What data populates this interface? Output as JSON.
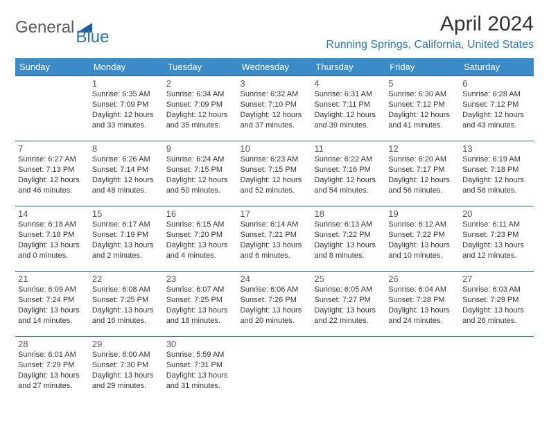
{
  "logo": {
    "part1": "General",
    "part2": "Blue",
    "text_color_1": "#5a5a5a",
    "text_color_2": "#2b76b9",
    "shape_color": "#1f5d94"
  },
  "title": "April 2024",
  "location": "Running Springs, California, United States",
  "colors": {
    "header_bg": "#3b8bc9",
    "header_text": "#ffffff",
    "cell_border": "#2b5a87",
    "day_num_color": "#555555",
    "body_text": "#333333",
    "location_color": "#2b76b9"
  },
  "day_headers": [
    "Sunday",
    "Monday",
    "Tuesday",
    "Wednesday",
    "Thursday",
    "Friday",
    "Saturday"
  ],
  "weeks": [
    [
      null,
      {
        "d": "1",
        "sr": "6:35 AM",
        "ss": "7:09 PM",
        "dl1": "12 hours",
        "dl2": "and 33 minutes."
      },
      {
        "d": "2",
        "sr": "6:34 AM",
        "ss": "7:09 PM",
        "dl1": "12 hours",
        "dl2": "and 35 minutes."
      },
      {
        "d": "3",
        "sr": "6:32 AM",
        "ss": "7:10 PM",
        "dl1": "12 hours",
        "dl2": "and 37 minutes."
      },
      {
        "d": "4",
        "sr": "6:31 AM",
        "ss": "7:11 PM",
        "dl1": "12 hours",
        "dl2": "and 39 minutes."
      },
      {
        "d": "5",
        "sr": "6:30 AM",
        "ss": "7:12 PM",
        "dl1": "12 hours",
        "dl2": "and 41 minutes."
      },
      {
        "d": "6",
        "sr": "6:28 AM",
        "ss": "7:12 PM",
        "dl1": "12 hours",
        "dl2": "and 43 minutes."
      }
    ],
    [
      {
        "d": "7",
        "sr": "6:27 AM",
        "ss": "7:13 PM",
        "dl1": "12 hours",
        "dl2": "and 46 minutes."
      },
      {
        "d": "8",
        "sr": "6:26 AM",
        "ss": "7:14 PM",
        "dl1": "12 hours",
        "dl2": "and 48 minutes."
      },
      {
        "d": "9",
        "sr": "6:24 AM",
        "ss": "7:15 PM",
        "dl1": "12 hours",
        "dl2": "and 50 minutes."
      },
      {
        "d": "10",
        "sr": "6:23 AM",
        "ss": "7:15 PM",
        "dl1": "12 hours",
        "dl2": "and 52 minutes."
      },
      {
        "d": "11",
        "sr": "6:22 AM",
        "ss": "7:16 PM",
        "dl1": "12 hours",
        "dl2": "and 54 minutes."
      },
      {
        "d": "12",
        "sr": "6:20 AM",
        "ss": "7:17 PM",
        "dl1": "12 hours",
        "dl2": "and 56 minutes."
      },
      {
        "d": "13",
        "sr": "6:19 AM",
        "ss": "7:18 PM",
        "dl1": "12 hours",
        "dl2": "and 58 minutes."
      }
    ],
    [
      {
        "d": "14",
        "sr": "6:18 AM",
        "ss": "7:18 PM",
        "dl1": "13 hours",
        "dl2": "and 0 minutes."
      },
      {
        "d": "15",
        "sr": "6:17 AM",
        "ss": "7:19 PM",
        "dl1": "13 hours",
        "dl2": "and 2 minutes."
      },
      {
        "d": "16",
        "sr": "6:15 AM",
        "ss": "7:20 PM",
        "dl1": "13 hours",
        "dl2": "and 4 minutes."
      },
      {
        "d": "17",
        "sr": "6:14 AM",
        "ss": "7:21 PM",
        "dl1": "13 hours",
        "dl2": "and 6 minutes."
      },
      {
        "d": "18",
        "sr": "6:13 AM",
        "ss": "7:22 PM",
        "dl1": "13 hours",
        "dl2": "and 8 minutes."
      },
      {
        "d": "19",
        "sr": "6:12 AM",
        "ss": "7:22 PM",
        "dl1": "13 hours",
        "dl2": "and 10 minutes."
      },
      {
        "d": "20",
        "sr": "6:11 AM",
        "ss": "7:23 PM",
        "dl1": "13 hours",
        "dl2": "and 12 minutes."
      }
    ],
    [
      {
        "d": "21",
        "sr": "6:09 AM",
        "ss": "7:24 PM",
        "dl1": "13 hours",
        "dl2": "and 14 minutes."
      },
      {
        "d": "22",
        "sr": "6:08 AM",
        "ss": "7:25 PM",
        "dl1": "13 hours",
        "dl2": "and 16 minutes."
      },
      {
        "d": "23",
        "sr": "6:07 AM",
        "ss": "7:25 PM",
        "dl1": "13 hours",
        "dl2": "and 18 minutes."
      },
      {
        "d": "24",
        "sr": "6:06 AM",
        "ss": "7:26 PM",
        "dl1": "13 hours",
        "dl2": "and 20 minutes."
      },
      {
        "d": "25",
        "sr": "6:05 AM",
        "ss": "7:27 PM",
        "dl1": "13 hours",
        "dl2": "and 22 minutes."
      },
      {
        "d": "26",
        "sr": "6:04 AM",
        "ss": "7:28 PM",
        "dl1": "13 hours",
        "dl2": "and 24 minutes."
      },
      {
        "d": "27",
        "sr": "6:03 AM",
        "ss": "7:29 PM",
        "dl1": "13 hours",
        "dl2": "and 26 minutes."
      }
    ],
    [
      {
        "d": "28",
        "sr": "6:01 AM",
        "ss": "7:29 PM",
        "dl1": "13 hours",
        "dl2": "and 27 minutes."
      },
      {
        "d": "29",
        "sr": "6:00 AM",
        "ss": "7:30 PM",
        "dl1": "13 hours",
        "dl2": "and 29 minutes."
      },
      {
        "d": "30",
        "sr": "5:59 AM",
        "ss": "7:31 PM",
        "dl1": "13 hours",
        "dl2": "and 31 minutes."
      },
      null,
      null,
      null,
      null
    ]
  ],
  "labels": {
    "sunrise": "Sunrise:",
    "sunset": "Sunset:",
    "daylight": "Daylight:"
  }
}
